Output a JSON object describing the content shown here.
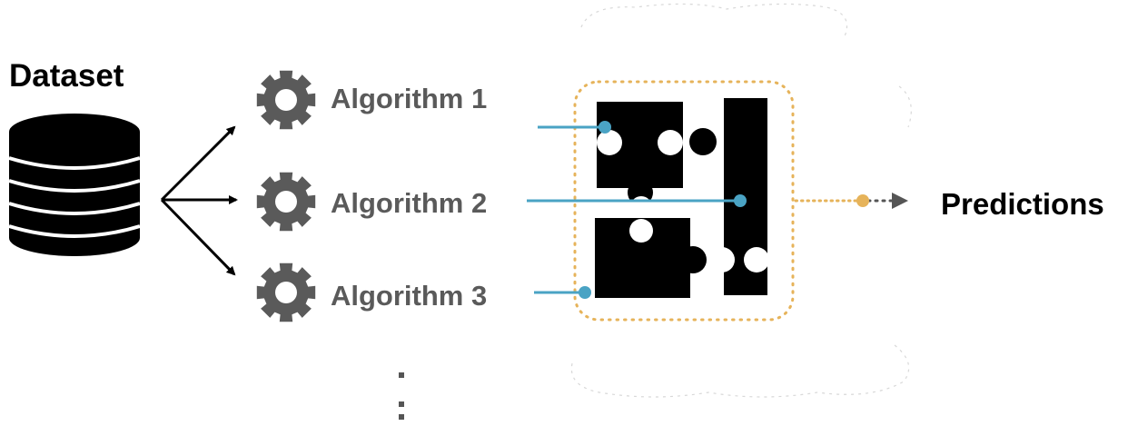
{
  "dataset": {
    "title": "Dataset",
    "icon": "database-icon"
  },
  "algorithms": [
    {
      "label": "Algorithm 1",
      "icon": "gear-icon"
    },
    {
      "label": "Algorithm 2",
      "icon": "gear-icon"
    },
    {
      "label": "Algorithm 3",
      "icon": "gear-icon"
    }
  ],
  "ensemble": {
    "icon": "puzzle-pieces-icon",
    "frame": "dotted-rounded-box"
  },
  "output": {
    "label": "Predictions"
  },
  "colors": {
    "text_primary": "#000000",
    "text_algorithm": "#5a5a5a",
    "gear": "#5a5a5a",
    "connector_blue": "#4aa3c4",
    "frame_orange": "#e6b35a",
    "arrow_gray": "#555555"
  }
}
